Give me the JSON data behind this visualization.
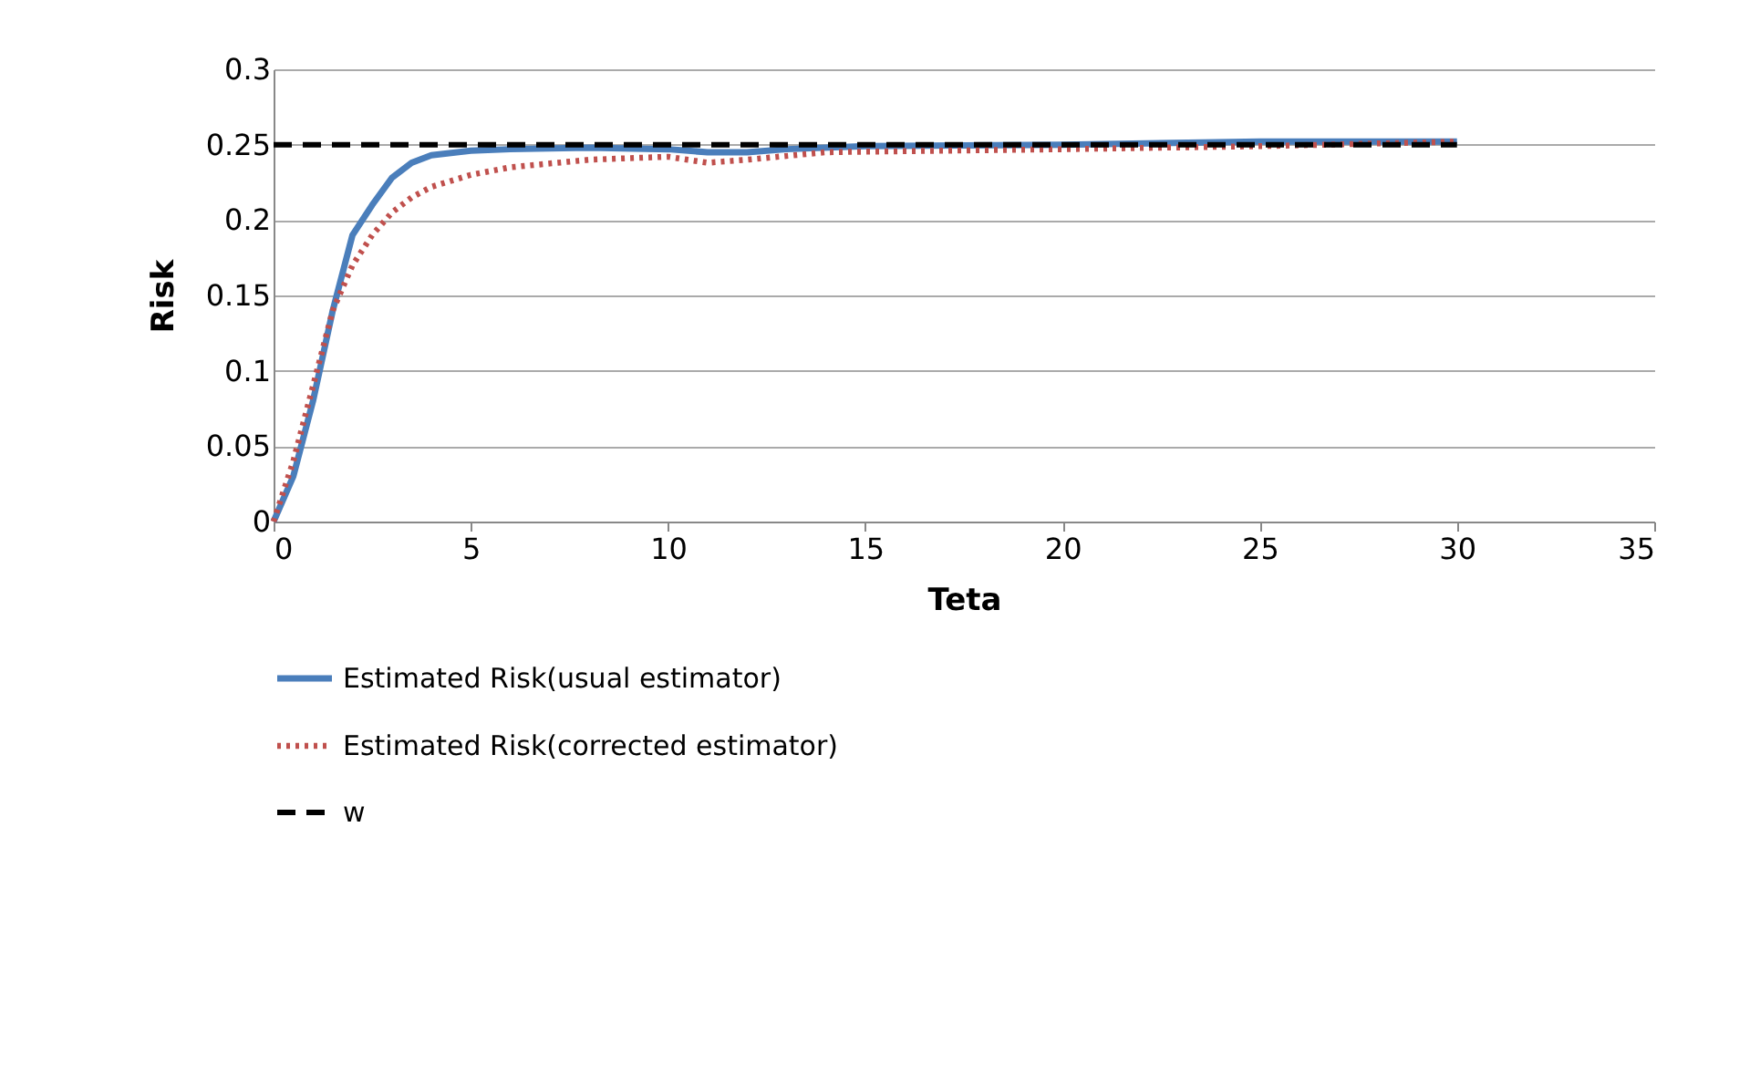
{
  "chart_data": {
    "type": "line",
    "xlabel": "Teta",
    "ylabel": "Risk",
    "xlim": [
      0,
      35
    ],
    "xticks": [
      0,
      5,
      10,
      15,
      20,
      25,
      30,
      35
    ],
    "ylim": [
      0,
      0.3
    ],
    "yticks": [
      0,
      0.05,
      0.1,
      0.15,
      0.2,
      0.25,
      0.3
    ],
    "grid": "y",
    "legend": "bottom",
    "marker": "none",
    "series": [
      {
        "name": "Estimated Risk(usual estimator)",
        "color": "#4a7ebb",
        "line_style": "solid",
        "x": [
          0,
          0.5,
          1,
          1.5,
          2,
          2.5,
          3,
          3.5,
          4,
          5,
          6,
          8,
          10,
          11,
          12,
          13,
          15,
          20,
          25,
          30
        ],
        "values": [
          0,
          0.03,
          0.08,
          0.14,
          0.19,
          0.21,
          0.228,
          0.238,
          0.243,
          0.246,
          0.247,
          0.248,
          0.247,
          0.245,
          0.245,
          0.247,
          0.249,
          0.25,
          0.252,
          0.252
        ]
      },
      {
        "name": "Estimated Risk(corrected estimator)",
        "color": "#c0504d",
        "line_style": "dotted",
        "x": [
          0,
          0.5,
          1,
          1.5,
          2,
          2.5,
          3,
          3.5,
          4,
          5,
          6,
          8,
          10,
          11,
          12,
          14,
          17,
          20,
          25,
          30
        ],
        "values": [
          0,
          0.04,
          0.09,
          0.14,
          0.17,
          0.19,
          0.205,
          0.215,
          0.222,
          0.23,
          0.235,
          0.24,
          0.242,
          0.238,
          0.24,
          0.245,
          0.246,
          0.247,
          0.249,
          0.252
        ]
      },
      {
        "name": "w",
        "color": "#000000",
        "line_style": "dashed",
        "x": [
          0,
          30
        ],
        "values": [
          0.25,
          0.25
        ]
      }
    ]
  }
}
